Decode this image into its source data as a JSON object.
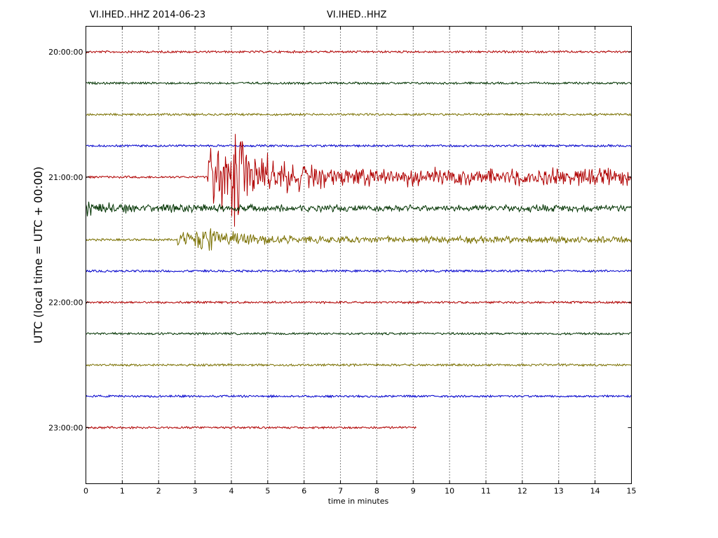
{
  "header": {
    "left_title": "VI.IHED..HHZ 2014-06-23",
    "center_title": "VI.IHED..HHZ"
  },
  "chart_data": {
    "type": "line",
    "title": "VI.IHED..HHZ",
    "xlabel": "time in minutes",
    "ylabel": "UTC (local time = UTC + 00:00)",
    "xlim": [
      0,
      15
    ],
    "x_ticks": [
      "0",
      "1",
      "2",
      "3",
      "4",
      "5",
      "6",
      "7",
      "8",
      "9",
      "10",
      "11",
      "12",
      "13",
      "14",
      "15"
    ],
    "grid": "vertical dotted",
    "y_ticks": [
      "20:00:00",
      "21:00:00",
      "22:00:00",
      "23:00:00"
    ],
    "trace_interval_minutes": 15,
    "trace_colors": [
      "#b00000",
      "#003300",
      "#7a7000",
      "#0000cc"
    ],
    "series": [
      {
        "start": "20:00:00",
        "end_minute": 15,
        "amplitude": "low",
        "event": null
      },
      {
        "start": "20:15:00",
        "end_minute": 15,
        "amplitude": "low",
        "event": null
      },
      {
        "start": "20:30:00",
        "end_minute": 15,
        "amplitude": "low",
        "event": null
      },
      {
        "start": "20:45:00",
        "end_minute": 15,
        "amplitude": "low",
        "event": null
      },
      {
        "start": "21:00:00",
        "end_minute": 15,
        "amplitude": "high",
        "event": {
          "onset_minute": 3.35,
          "peak_minute": 4.0,
          "peak_amplitude_rows": 1.8,
          "coda_amplitude_rows": 0.3
        }
      },
      {
        "start": "21:15:00",
        "end_minute": 15,
        "amplitude": "medium",
        "event": {
          "onset_minute": 0,
          "peak_minute": 0.5,
          "peak_amplitude_rows": 0.3,
          "coda_amplitude_rows": 0.12
        }
      },
      {
        "start": "21:30:00",
        "end_minute": 15,
        "amplitude": "medium",
        "event": {
          "onset_minute": 2.5,
          "peak_minute": 3.3,
          "peak_amplitude_rows": 0.45,
          "coda_amplitude_rows": 0.12
        }
      },
      {
        "start": "21:45:00",
        "end_minute": 15,
        "amplitude": "low",
        "event": null
      },
      {
        "start": "22:00:00",
        "end_minute": 15,
        "amplitude": "low",
        "event": null
      },
      {
        "start": "22:15:00",
        "end_minute": 15,
        "amplitude": "low",
        "event": null
      },
      {
        "start": "22:30:00",
        "end_minute": 15,
        "amplitude": "low",
        "event": null
      },
      {
        "start": "22:45:00",
        "end_minute": 15,
        "amplitude": "low",
        "event": null
      },
      {
        "start": "23:00:00",
        "end_minute": 9.1,
        "amplitude": "low",
        "event": null
      }
    ]
  }
}
